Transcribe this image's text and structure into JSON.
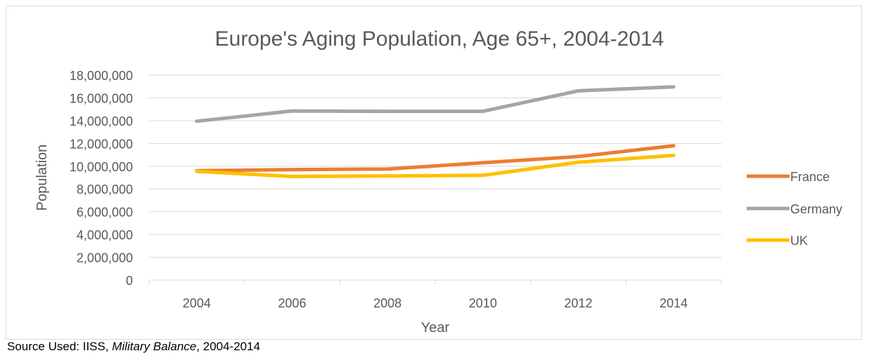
{
  "chart_data": {
    "type": "line",
    "title": "Europe's Aging Population, Age 65+, 2004-2014",
    "xlabel": "Year",
    "ylabel": "Population",
    "categories": [
      "2004",
      "2006",
      "2008",
      "2010",
      "2012",
      "2014"
    ],
    "ylim": [
      0,
      18000000
    ],
    "yticks": [
      "0",
      "2,000,000",
      "4,000,000",
      "6,000,000",
      "8,000,000",
      "10,000,000",
      "12,000,000",
      "14,000,000",
      "16,000,000",
      "18,000,000"
    ],
    "grid": true,
    "legend_position": "right",
    "series": [
      {
        "name": "France",
        "color": "#ed7d31",
        "values": [
          9600000,
          9700000,
          9750000,
          10300000,
          10850000,
          11800000
        ]
      },
      {
        "name": "Germany",
        "color": "#a5a5a5",
        "values": [
          13950000,
          14850000,
          14820000,
          14820000,
          16620000,
          16970000
        ]
      },
      {
        "name": "UK",
        "color": "#ffc000",
        "values": [
          9550000,
          9100000,
          9150000,
          9200000,
          10350000,
          10950000
        ]
      }
    ]
  },
  "source": {
    "prefix": "Source Used: IISS, ",
    "publication": "Military Balance",
    "suffix": ", 2004-2014"
  }
}
